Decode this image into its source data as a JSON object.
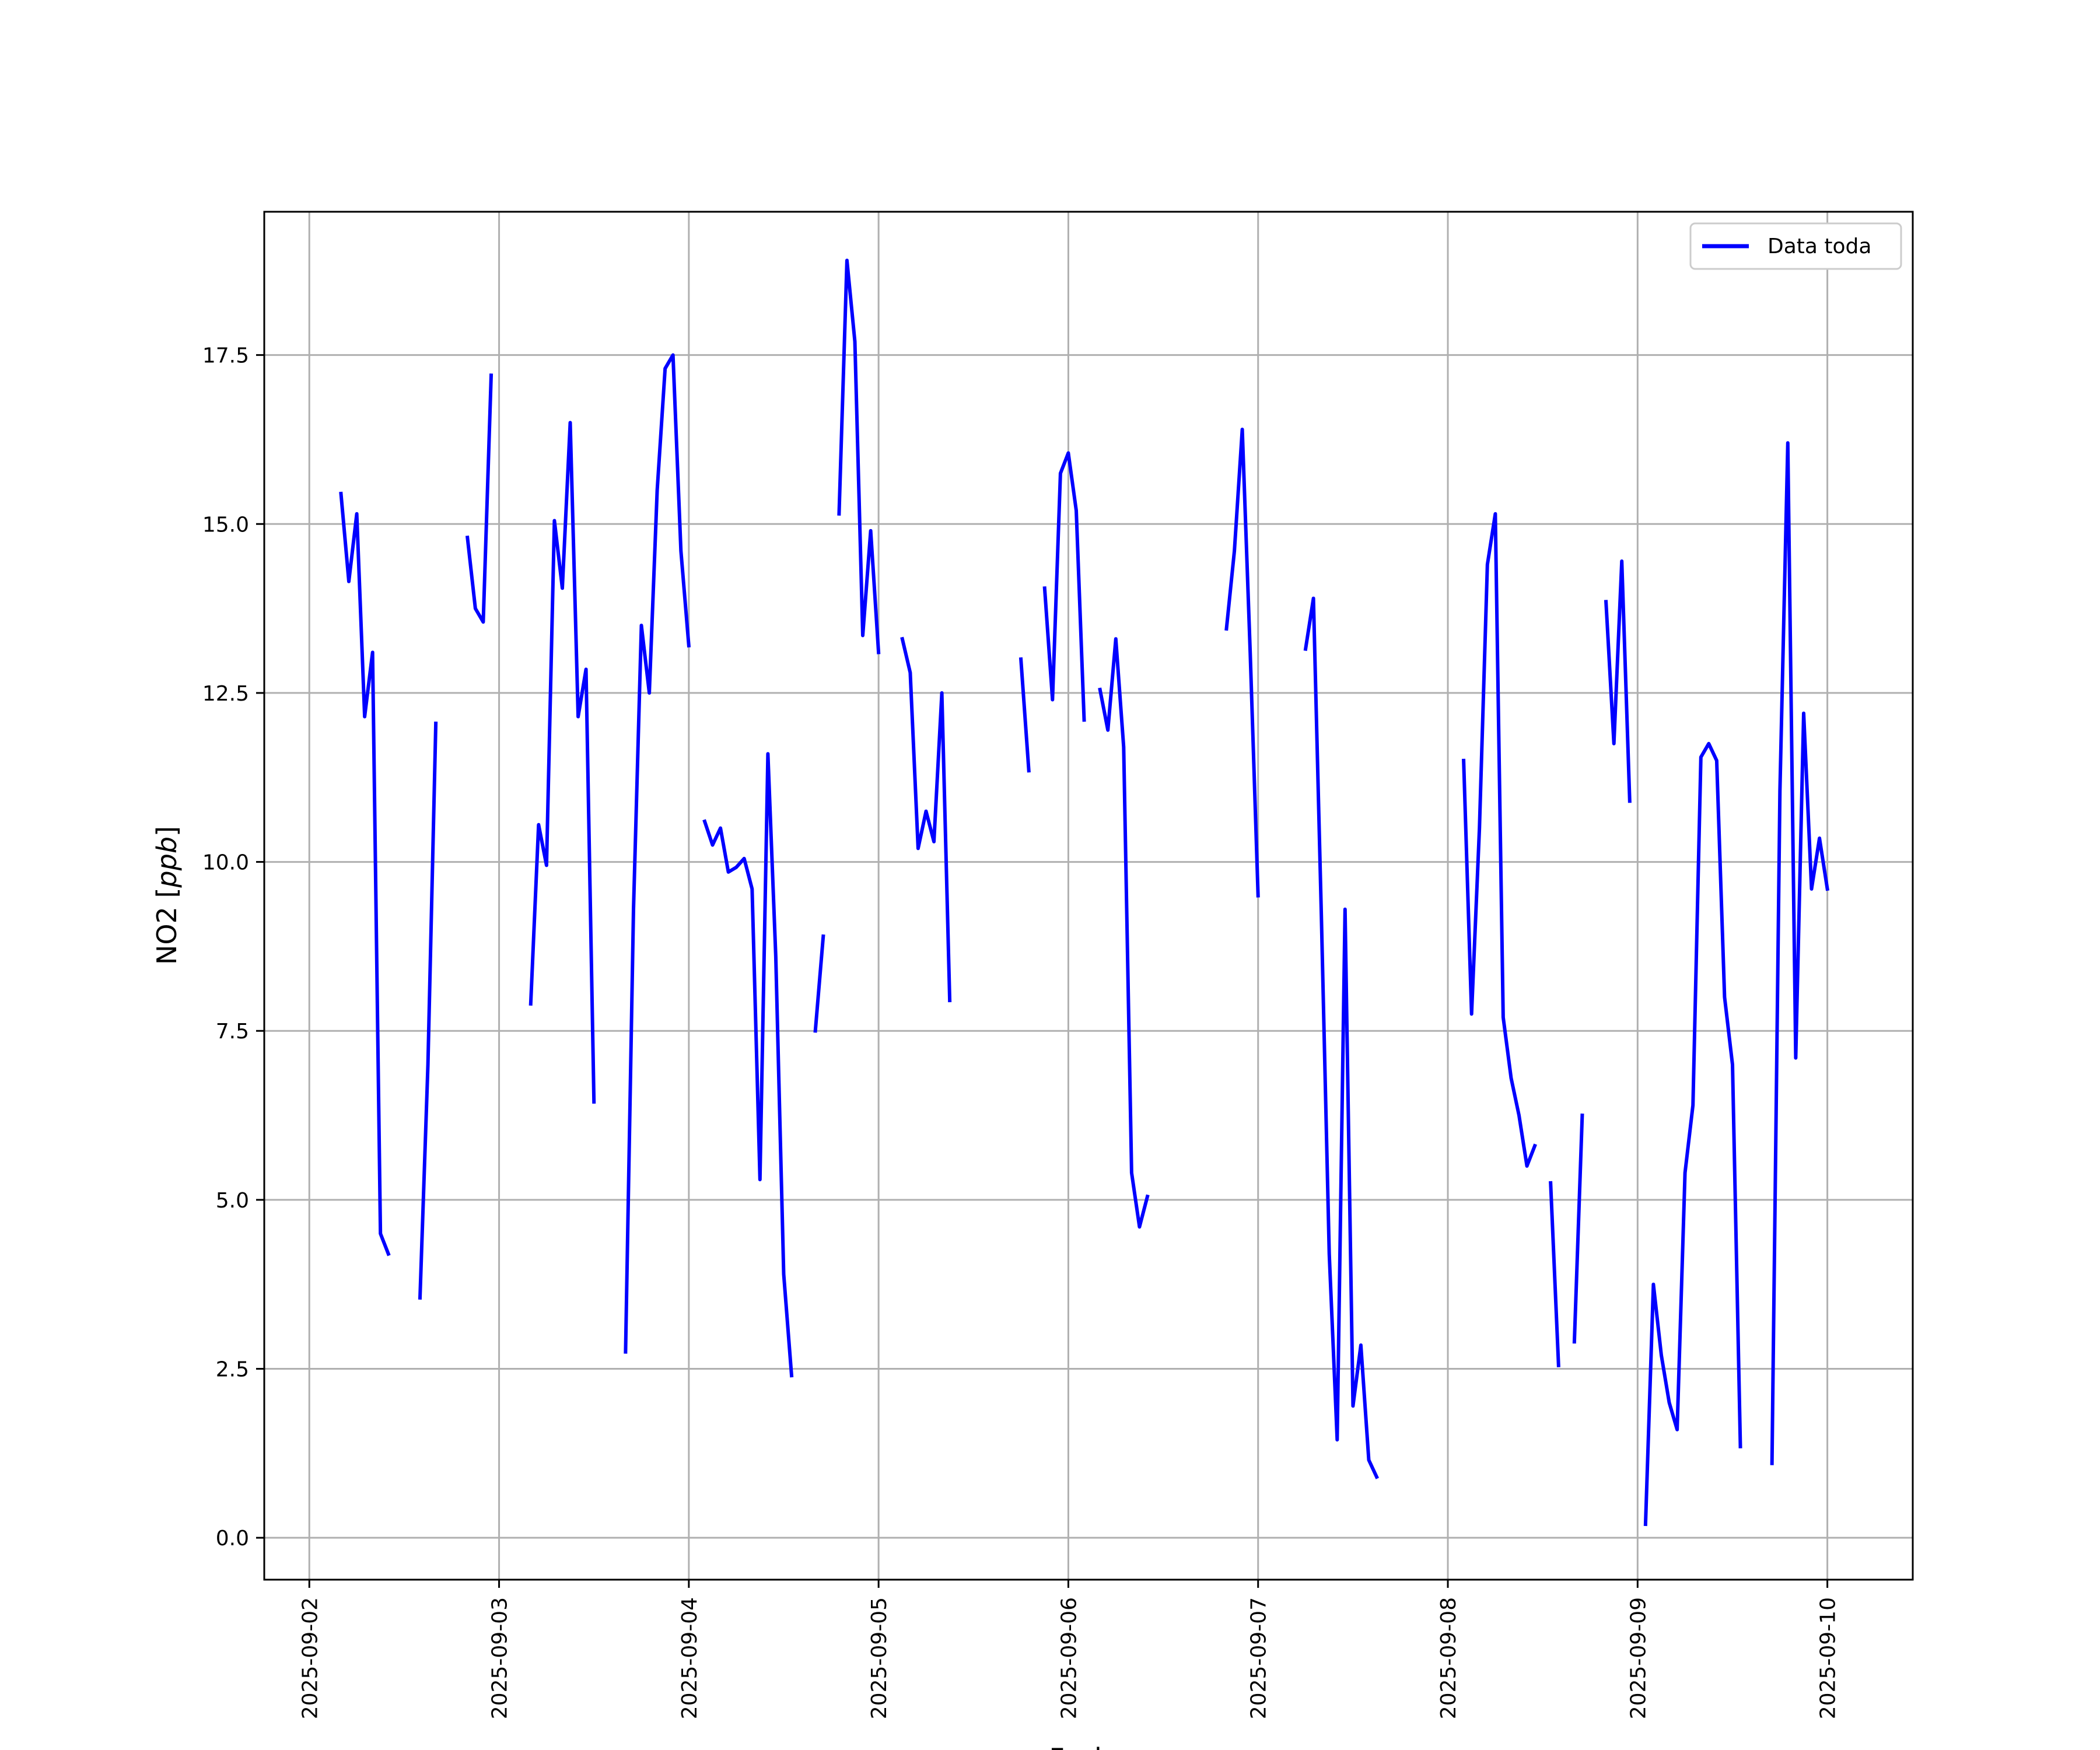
{
  "chart_data": {
    "type": "line",
    "title": "",
    "xlabel": "Fecha",
    "ylabel_text": "NO2 [",
    "ylabel_unit": "ppb",
    "ylabel_close": "]",
    "x_type": "date",
    "xlim": [
      "2025-09-01T18:18",
      "2025-09-10T10:48"
    ],
    "ylim": [
      -0.62,
      19.62
    ],
    "x_ticks": [
      "2025-09-02",
      "2025-09-03",
      "2025-09-04",
      "2025-09-05",
      "2025-09-06",
      "2025-09-07",
      "2025-09-08",
      "2025-09-09",
      "2025-09-10"
    ],
    "y_ticks": [
      "0.0",
      "2.5",
      "5.0",
      "7.5",
      "10.0",
      "12.5",
      "15.0",
      "17.5"
    ],
    "y_tick_values": [
      0,
      2.5,
      5,
      7.5,
      10,
      12.5,
      15,
      17.5
    ],
    "grid": true,
    "legend_position": "top-right",
    "series": [
      {
        "name": "Data toda",
        "color": "#0000ff",
        "segments": [
          [
            [
              "2025-09-02T04:00",
              15.45
            ],
            [
              "2025-09-02T05:00",
              14.15
            ],
            [
              "2025-09-02T06:00",
              15.15
            ],
            [
              "2025-09-02T07:00",
              12.15
            ],
            [
              "2025-09-02T08:00",
              13.1
            ],
            [
              "2025-09-02T09:00",
              4.5
            ],
            [
              "2025-09-02T10:00",
              4.2
            ]
          ],
          [
            [
              "2025-09-02T14:00",
              3.55
            ],
            [
              "2025-09-02T15:00",
              7.0
            ],
            [
              "2025-09-02T16:00",
              12.05
            ]
          ],
          [
            [
              "2025-09-02T20:00",
              14.8
            ],
            [
              "2025-09-02T21:00",
              13.75
            ],
            [
              "2025-09-02T22:00",
              13.55
            ],
            [
              "2025-09-02T23:00",
              17.2
            ]
          ],
          [
            [
              "2025-09-03T04:00",
              7.9
            ],
            [
              "2025-09-03T05:00",
              10.55
            ],
            [
              "2025-09-03T06:00",
              9.95
            ],
            [
              "2025-09-03T07:00",
              15.05
            ],
            [
              "2025-09-03T08:00",
              14.05
            ],
            [
              "2025-09-03T09:00",
              16.5
            ],
            [
              "2025-09-03T10:00",
              12.15
            ],
            [
              "2025-09-03T11:00",
              12.85
            ],
            [
              "2025-09-03T12:00",
              6.45
            ]
          ],
          [
            [
              "2025-09-03T16:00",
              2.75
            ],
            [
              "2025-09-03T17:00",
              9.3
            ],
            [
              "2025-09-03T18:00",
              13.5
            ],
            [
              "2025-09-03T19:00",
              12.5
            ],
            [
              "2025-09-03T20:00",
              15.5
            ],
            [
              "2025-09-03T21:00",
              17.3
            ],
            [
              "2025-09-03T22:00",
              17.5
            ],
            [
              "2025-09-03T23:00",
              14.6
            ],
            [
              "2025-09-04T00:00",
              13.2
            ]
          ],
          [
            [
              "2025-09-04T02:00",
              10.6
            ],
            [
              "2025-09-04T03:00",
              10.25
            ],
            [
              "2025-09-04T04:00",
              10.5
            ],
            [
              "2025-09-04T05:00",
              9.85
            ],
            [
              "2025-09-04T06:00",
              9.92
            ],
            [
              "2025-09-04T07:00",
              10.05
            ],
            [
              "2025-09-04T08:00",
              9.6
            ],
            [
              "2025-09-04T09:00",
              5.3
            ],
            [
              "2025-09-04T10:00",
              11.6
            ],
            [
              "2025-09-04T11:00",
              8.6
            ],
            [
              "2025-09-04T12:00",
              3.9
            ],
            [
              "2025-09-04T13:00",
              2.4
            ]
          ],
          [
            [
              "2025-09-04T16:00",
              7.5
            ],
            [
              "2025-09-04T17:00",
              8.9
            ]
          ],
          [
            [
              "2025-09-04T19:00",
              15.15
            ],
            [
              "2025-09-04T20:00",
              18.9
            ],
            [
              "2025-09-04T21:00",
              17.7
            ],
            [
              "2025-09-04T22:00",
              13.35
            ],
            [
              "2025-09-04T23:00",
              14.9
            ],
            [
              "2025-09-05T00:00",
              13.1
            ]
          ],
          [
            [
              "2025-09-05T03:00",
              13.3
            ],
            [
              "2025-09-05T04:00",
              12.8
            ],
            [
              "2025-09-05T05:00",
              10.2
            ],
            [
              "2025-09-05T06:00",
              10.75
            ],
            [
              "2025-09-05T07:00",
              10.3
            ],
            [
              "2025-09-05T08:00",
              12.5
            ],
            [
              "2025-09-05T09:00",
              7.95
            ]
          ],
          [
            [
              "2025-09-05T18:00",
              13.0
            ],
            [
              "2025-09-05T19:00",
              11.35
            ]
          ],
          [
            [
              "2025-09-05T21:00",
              14.05
            ],
            [
              "2025-09-05T22:00",
              12.4
            ],
            [
              "2025-09-05T23:00",
              15.75
            ],
            [
              "2025-09-06T00:00",
              16.05
            ],
            [
              "2025-09-06T01:00",
              15.2
            ],
            [
              "2025-09-06T02:00",
              12.1
            ]
          ],
          [
            [
              "2025-09-06T04:00",
              12.55
            ],
            [
              "2025-09-06T05:00",
              11.95
            ],
            [
              "2025-09-06T06:00",
              13.3
            ],
            [
              "2025-09-06T07:00",
              11.7
            ],
            [
              "2025-09-06T08:00",
              5.4
            ],
            [
              "2025-09-06T09:00",
              4.6
            ],
            [
              "2025-09-06T10:00",
              5.05
            ]
          ],
          [
            [
              "2025-09-06T20:00",
              13.45
            ],
            [
              "2025-09-06T21:00",
              14.6
            ],
            [
              "2025-09-06T22:00",
              16.4
            ],
            [
              "2025-09-06T23:00",
              13.1
            ],
            [
              "2025-09-07T00:00",
              9.5
            ]
          ],
          [
            [
              "2025-09-07T06:00",
              13.15
            ],
            [
              "2025-09-07T07:00",
              13.9
            ],
            [
              "2025-09-07T08:00",
              9.2
            ],
            [
              "2025-09-07T09:00",
              4.2
            ],
            [
              "2025-09-07T10:00",
              1.45
            ],
            [
              "2025-09-07T11:00",
              9.3
            ],
            [
              "2025-09-07T12:00",
              1.95
            ],
            [
              "2025-09-07T13:00",
              2.85
            ],
            [
              "2025-09-07T14:00",
              1.15
            ],
            [
              "2025-09-07T15:00",
              0.9
            ]
          ],
          [
            [
              "2025-09-08T02:00",
              11.5
            ],
            [
              "2025-09-08T03:00",
              7.75
            ],
            [
              "2025-09-08T04:00",
              10.5
            ],
            [
              "2025-09-08T05:00",
              14.4
            ],
            [
              "2025-09-08T06:00",
              15.15
            ],
            [
              "2025-09-08T07:00",
              7.7
            ],
            [
              "2025-09-08T08:00",
              6.8
            ],
            [
              "2025-09-08T09:00",
              6.25
            ],
            [
              "2025-09-08T10:00",
              5.5
            ],
            [
              "2025-09-08T11:00",
              5.8
            ]
          ],
          [
            [
              "2025-09-08T13:00",
              5.25
            ],
            [
              "2025-09-08T14:00",
              2.55
            ]
          ],
          [
            [
              "2025-09-08T16:00",
              2.9
            ],
            [
              "2025-09-08T17:00",
              6.25
            ]
          ],
          [
            [
              "2025-09-08T20:00",
              13.85
            ],
            [
              "2025-09-08T21:00",
              11.75
            ],
            [
              "2025-09-08T22:00",
              14.45
            ],
            [
              "2025-09-08T23:00",
              10.9
            ]
          ],
          [
            [
              "2025-09-09T01:00",
              0.2
            ],
            [
              "2025-09-09T02:00",
              3.75
            ],
            [
              "2025-09-09T03:00",
              2.7
            ],
            [
              "2025-09-09T04:00",
              2.0
            ],
            [
              "2025-09-09T05:00",
              1.6
            ],
            [
              "2025-09-09T06:00",
              5.4
            ],
            [
              "2025-09-09T07:00",
              6.4
            ],
            [
              "2025-09-09T08:00",
              11.55
            ],
            [
              "2025-09-09T09:00",
              11.75
            ],
            [
              "2025-09-09T10:00",
              11.5
            ],
            [
              "2025-09-09T11:00",
              8.0
            ],
            [
              "2025-09-09T12:00",
              7.0
            ],
            [
              "2025-09-09T13:00",
              1.35
            ]
          ],
          [
            [
              "2025-09-09T17:00",
              1.1
            ],
            [
              "2025-09-09T18:00",
              11.05
            ],
            [
              "2025-09-09T19:00",
              16.2
            ],
            [
              "2025-09-09T20:00",
              7.1
            ],
            [
              "2025-09-09T21:00",
              12.2
            ],
            [
              "2025-09-09T22:00",
              9.6
            ],
            [
              "2025-09-09T23:00",
              10.35
            ],
            [
              "2025-09-10T00:00",
              9.6
            ]
          ]
        ]
      }
    ]
  }
}
